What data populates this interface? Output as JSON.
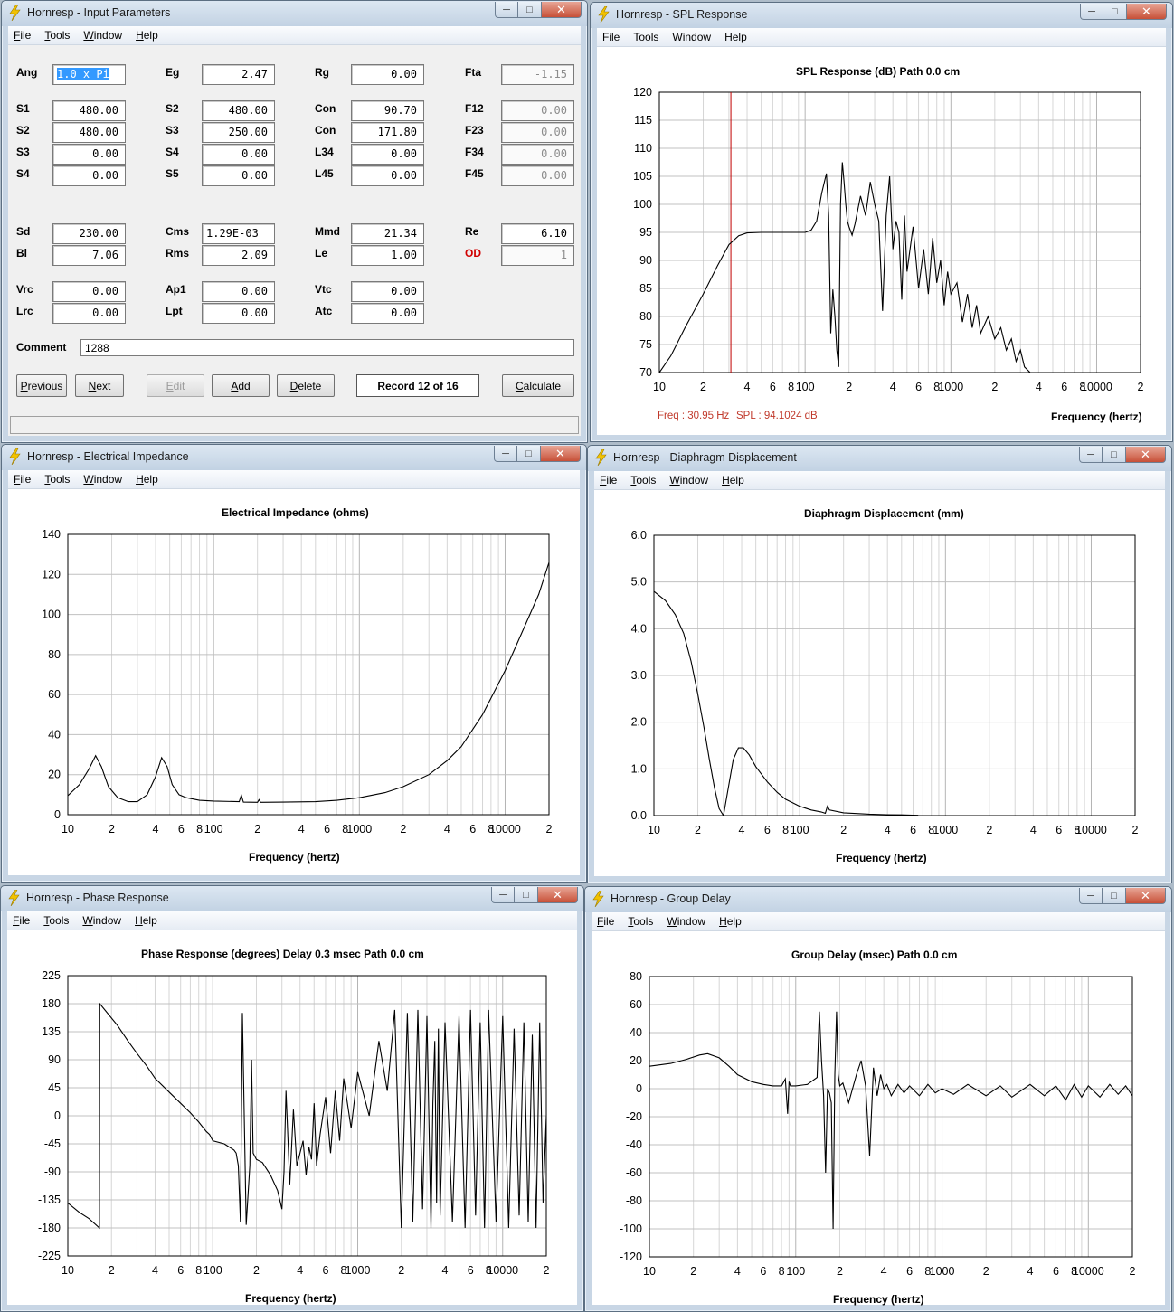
{
  "menu": [
    "File",
    "Tools",
    "Window",
    "Help"
  ],
  "windows": {
    "input": {
      "title": "Hornresp - Input Parameters"
    },
    "spl": {
      "title": "Hornresp - SPL Response"
    },
    "imp": {
      "title": "Hornresp - Electrical Impedance"
    },
    "disp": {
      "title": "Hornresp - Diaphragm Displacement"
    },
    "phase": {
      "title": "Hornresp - Phase Response"
    },
    "gd": {
      "title": "Hornresp - Group Delay"
    }
  },
  "params": {
    "ang": {
      "label": "Ang",
      "value": "1.0 x Pi"
    },
    "eg": {
      "label": "Eg",
      "value": "2.47"
    },
    "rg": {
      "label": "Rg",
      "value": "0.00"
    },
    "fta": {
      "label": "Fta",
      "value": "-1.15"
    },
    "s1": {
      "label": "S1",
      "value": "480.00"
    },
    "s2a": {
      "label": "S2",
      "value": "480.00"
    },
    "s3a": {
      "label": "S3",
      "value": "0.00"
    },
    "s4a": {
      "label": "S4",
      "value": "0.00"
    },
    "s2b": {
      "label": "S2",
      "value": "480.00"
    },
    "s3b": {
      "label": "S3",
      "value": "250.00"
    },
    "s4b": {
      "label": "S4",
      "value": "0.00"
    },
    "s5": {
      "label": "S5",
      "value": "0.00"
    },
    "con1": {
      "label": "Con",
      "value": "90.70"
    },
    "con2": {
      "label": "Con",
      "value": "171.80"
    },
    "l34": {
      "label": "L34",
      "value": "0.00"
    },
    "l45": {
      "label": "L45",
      "value": "0.00"
    },
    "f12": {
      "label": "F12",
      "value": "0.00"
    },
    "f23": {
      "label": "F23",
      "value": "0.00"
    },
    "f34": {
      "label": "F34",
      "value": "0.00"
    },
    "f45": {
      "label": "F45",
      "value": "0.00"
    },
    "sd": {
      "label": "Sd",
      "value": "230.00"
    },
    "bl": {
      "label": "Bl",
      "value": "7.06"
    },
    "cms": {
      "label": "Cms",
      "value": "1.29E-03"
    },
    "rms": {
      "label": "Rms",
      "value": "2.09"
    },
    "mmd": {
      "label": "Mmd",
      "value": "21.34"
    },
    "le": {
      "label": "Le",
      "value": "1.00"
    },
    "re": {
      "label": "Re",
      "value": "6.10"
    },
    "od": {
      "label": "OD",
      "value": "1"
    },
    "vrc": {
      "label": "Vrc",
      "value": "0.00"
    },
    "lrc": {
      "label": "Lrc",
      "value": "0.00"
    },
    "ap1": {
      "label": "Ap1",
      "value": "0.00"
    },
    "lpt": {
      "label": "Lpt",
      "value": "0.00"
    },
    "vtc": {
      "label": "Vtc",
      "value": "0.00"
    },
    "atc": {
      "label": "Atc",
      "value": "0.00"
    },
    "comment": {
      "label": "Comment",
      "value": "1288"
    }
  },
  "buttons": {
    "previous": "Previous",
    "next": "Next",
    "edit": "Edit",
    "add": "Add",
    "delete": "Delete",
    "calculate": "Calculate",
    "record": "Record 12 of 16"
  },
  "readout": {
    "freq": "Freq : 30.95 Hz",
    "spl": "SPL : 94.1024 dB"
  },
  "chart_data": [
    {
      "id": "spl",
      "type": "line",
      "title": "SPL Response (dB)   Path 0.0 cm",
      "xlabel": "Frequency (hertz)",
      "xscale": "log",
      "xlim": [
        10,
        20000
      ],
      "xtick_labels": [
        "10",
        "2",
        "4",
        "6",
        "8",
        "100",
        "2",
        "4",
        "6",
        "8",
        "1000",
        "2",
        "4",
        "6",
        "8",
        "10000",
        "2"
      ],
      "ylim": [
        70,
        120
      ],
      "yticks": [
        70,
        75,
        80,
        85,
        90,
        95,
        100,
        105,
        110,
        115,
        120
      ],
      "cursor_x": 30.95,
      "x": [
        10,
        12,
        15,
        20,
        25,
        30,
        35,
        40,
        50,
        60,
        80,
        100,
        110,
        120,
        130,
        140,
        145,
        150,
        155,
        160,
        165,
        170,
        175,
        180,
        185,
        190,
        195,
        200,
        210,
        220,
        240,
        260,
        280,
        300,
        320,
        340,
        360,
        380,
        400,
        420,
        440,
        460,
        480,
        500,
        550,
        600,
        650,
        700,
        750,
        800,
        850,
        900,
        950,
        1000,
        1100,
        1200,
        1300,
        1400,
        1500,
        1600,
        1800,
        2000,
        2200,
        2400,
        2600,
        2800,
        3000,
        3200,
        3500
      ],
      "y": [
        70,
        73,
        78,
        84,
        89,
        92.8,
        94.4,
        94.9,
        95,
        95,
        95,
        95,
        95.4,
        97,
        102,
        105.5,
        98,
        77,
        84.8,
        80,
        74,
        71,
        100,
        107.5,
        104,
        100,
        97,
        96,
        94.5,
        96.5,
        101.5,
        98,
        104,
        100,
        97,
        81,
        98,
        105,
        92,
        97,
        95,
        83,
        98,
        88,
        96,
        85,
        92,
        84,
        94,
        86,
        90,
        82,
        88,
        84,
        86,
        79,
        84,
        78,
        82,
        77,
        80,
        76,
        78,
        74,
        76,
        72,
        74,
        71,
        70
      ]
    },
    {
      "id": "impedance",
      "type": "line",
      "title": "Electrical Impedance (ohms)",
      "xlabel": "Frequency (hertz)",
      "xscale": "log",
      "xlim": [
        10,
        20000
      ],
      "xtick_labels": [
        "10",
        "2",
        "4",
        "6",
        "8",
        "100",
        "2",
        "4",
        "6",
        "8",
        "1000",
        "2",
        "4",
        "6",
        "8",
        "10000",
        "2"
      ],
      "ylim": [
        0,
        140
      ],
      "yticks": [
        0,
        20,
        40,
        60,
        80,
        100,
        120,
        140
      ],
      "x": [
        10,
        12,
        14,
        15.5,
        17,
        19,
        22,
        26,
        30,
        35,
        40,
        44,
        48,
        52,
        58,
        65,
        80,
        100,
        150,
        155,
        160,
        200,
        205,
        210,
        300,
        500,
        700,
        1000,
        1500,
        2000,
        3000,
        4000,
        5000,
        7000,
        10000,
        14000,
        17000,
        20000
      ],
      "y": [
        9.5,
        15,
        23,
        29.5,
        24,
        14,
        8.5,
        6.5,
        6.5,
        10,
        19,
        28.5,
        24,
        15,
        10,
        8.5,
        7.2,
        6.8,
        6.5,
        9.8,
        6.3,
        6.2,
        7.5,
        6.2,
        6.3,
        6.5,
        7.2,
        8.5,
        11,
        14,
        20,
        27,
        34,
        50,
        72,
        96,
        110,
        126
      ]
    },
    {
      "id": "displacement",
      "type": "line",
      "title": "Diaphragm Displacement (mm)",
      "xlabel": "Frequency (hertz)",
      "xscale": "log",
      "xlim": [
        10,
        20000
      ],
      "xtick_labels": [
        "10",
        "2",
        "4",
        "6",
        "8",
        "100",
        "2",
        "4",
        "6",
        "8",
        "1000",
        "2",
        "4",
        "6",
        "8",
        "10000",
        "2"
      ],
      "ylim": [
        0,
        6
      ],
      "yticks": [
        "0.0",
        "1.0",
        "2.0",
        "3.0",
        "4.0",
        "5.0",
        "6.0"
      ],
      "x": [
        10,
        12,
        14,
        16,
        18,
        20,
        22,
        24,
        26,
        28,
        30,
        32,
        35,
        38,
        41,
        45,
        50,
        60,
        70,
        80,
        100,
        120,
        140,
        150,
        155,
        160,
        200,
        300,
        400,
        500,
        600,
        650
      ],
      "y": [
        4.8,
        4.6,
        4.3,
        3.9,
        3.3,
        2.6,
        1.9,
        1.2,
        0.6,
        0.15,
        0.0,
        0.5,
        1.2,
        1.45,
        1.45,
        1.3,
        1.05,
        0.72,
        0.5,
        0.35,
        0.2,
        0.12,
        0.08,
        0.05,
        0.2,
        0.12,
        0.06,
        0.03,
        0.02,
        0.015,
        0.01,
        0.005
      ]
    },
    {
      "id": "phase",
      "type": "line",
      "title": "Phase Response (degrees)   Delay 0.3 msec   Path 0.0 cm",
      "xlabel": "Frequency (hertz)",
      "xscale": "log",
      "xlim": [
        10,
        20000
      ],
      "xtick_labels": [
        "10",
        "2",
        "4",
        "6",
        "8",
        "100",
        "2",
        "4",
        "6",
        "8",
        "1000",
        "2",
        "4",
        "6",
        "8",
        "10000",
        "2"
      ],
      "ylim": [
        -225,
        225
      ],
      "yticks": [
        -225,
        -180,
        -135,
        -90,
        -45,
        0,
        45,
        90,
        135,
        180,
        225
      ],
      "x": [
        10,
        12,
        14,
        16.5,
        16.6,
        18,
        22,
        26,
        30,
        35,
        40,
        50,
        60,
        70,
        80,
        90,
        95,
        100,
        120,
        140,
        145,
        150,
        155,
        160,
        170,
        180,
        185,
        190,
        200,
        220,
        250,
        280,
        300,
        310,
        320,
        340,
        360,
        380,
        400,
        420,
        440,
        460,
        480,
        500,
        520,
        550,
        600,
        650,
        700,
        750,
        800,
        900,
        1000,
        1200,
        1400,
        1600,
        1800,
        2000,
        2200,
        2400,
        2600,
        2800,
        3000,
        3200,
        3300,
        3400,
        3500,
        3600,
        3700,
        4000,
        4500,
        5000,
        5500,
        6000,
        6500,
        7000,
        7500,
        8000,
        9000,
        10000,
        11000,
        12000,
        13000,
        14000,
        15000,
        16000,
        17000,
        18000,
        19000,
        20000
      ],
      "y": [
        -140,
        -155,
        -165,
        -180,
        180,
        170,
        145,
        120,
        100,
        80,
        60,
        38,
        20,
        5,
        -10,
        -25,
        -30,
        -40,
        -45,
        -55,
        -60,
        -80,
        -170,
        165,
        -175,
        -80,
        90,
        -60,
        -70,
        -75,
        -95,
        -120,
        -150,
        -90,
        40,
        -110,
        10,
        -80,
        -60,
        -40,
        -95,
        -50,
        -70,
        20,
        -80,
        -30,
        30,
        -60,
        40,
        -40,
        60,
        -20,
        70,
        0,
        120,
        40,
        170,
        -180,
        165,
        -170,
        170,
        -150,
        160,
        -180,
        20,
        120,
        -140,
        140,
        -160,
        150,
        -170,
        160,
        -180,
        170,
        -160,
        150,
        -180,
        170,
        -170,
        160,
        -180,
        140,
        -160,
        150,
        -170,
        130,
        -180,
        150,
        -140,
        0
      ]
    },
    {
      "id": "group_delay",
      "type": "line",
      "title": "Group Delay (msec)   Path 0.0 cm",
      "xlabel": "Frequency (hertz)",
      "xscale": "log",
      "xlim": [
        10,
        20000
      ],
      "xtick_labels": [
        "10",
        "2",
        "4",
        "6",
        "8",
        "100",
        "2",
        "4",
        "6",
        "8",
        "1000",
        "2",
        "4",
        "6",
        "8",
        "10000",
        "2"
      ],
      "ylim": [
        -120,
        80
      ],
      "yticks": [
        -120,
        -100,
        -80,
        -60,
        -40,
        -20,
        0,
        20,
        40,
        60,
        80
      ],
      "x": [
        10,
        14,
        18,
        22,
        25,
        30,
        35,
        40,
        50,
        60,
        70,
        80,
        85,
        88,
        90,
        92,
        100,
        120,
        140,
        145,
        150,
        155,
        160,
        165,
        170,
        175,
        180,
        185,
        190,
        195,
        200,
        210,
        230,
        260,
        280,
        300,
        320,
        340,
        360,
        380,
        400,
        420,
        450,
        500,
        550,
        600,
        700,
        800,
        900,
        1000,
        1200,
        1500,
        2000,
        2500,
        3000,
        4000,
        5000,
        6000,
        7000,
        8000,
        9000,
        10000,
        12000,
        14000,
        16000,
        18000,
        20000
      ],
      "y": [
        16,
        18,
        21,
        24,
        25,
        22,
        16,
        10,
        5,
        3,
        2,
        2,
        7,
        -18,
        5,
        2,
        2,
        3,
        8,
        55,
        20,
        -5,
        -60,
        0,
        -3,
        -10,
        -100,
        10,
        55,
        10,
        2,
        4,
        -10,
        10,
        20,
        2,
        -48,
        15,
        -5,
        10,
        0,
        3,
        -5,
        3,
        -3,
        2,
        -5,
        3,
        -3,
        0,
        -4,
        3,
        -5,
        2,
        -6,
        3,
        -5,
        2,
        -8,
        3,
        -6,
        2,
        -6,
        3,
        -4,
        2,
        -5
      ]
    }
  ]
}
